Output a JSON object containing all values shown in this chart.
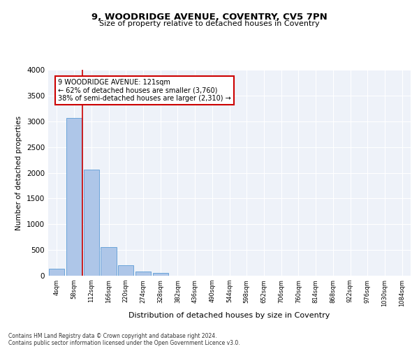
{
  "title1": "9, WOODRIDGE AVENUE, COVENTRY, CV5 7PN",
  "title2": "Size of property relative to detached houses in Coventry",
  "xlabel": "Distribution of detached houses by size in Coventry",
  "ylabel": "Number of detached properties",
  "bar_labels": [
    "4sqm",
    "58sqm",
    "112sqm",
    "166sqm",
    "220sqm",
    "274sqm",
    "328sqm",
    "382sqm",
    "436sqm",
    "490sqm",
    "544sqm",
    "598sqm",
    "652sqm",
    "706sqm",
    "760sqm",
    "814sqm",
    "868sqm",
    "922sqm",
    "976sqm",
    "1030sqm",
    "1084sqm"
  ],
  "bar_values": [
    130,
    3060,
    2060,
    560,
    210,
    80,
    55,
    0,
    0,
    0,
    0,
    0,
    0,
    0,
    0,
    0,
    0,
    0,
    0,
    0,
    0
  ],
  "bar_color": "#aec6e8",
  "bar_edge_color": "#5b9bd5",
  "annotation_text1": "9 WOODRIDGE AVENUE: 121sqm",
  "annotation_text2": "← 62% of detached houses are smaller (3,760)",
  "annotation_text3": "38% of semi-detached houses are larger (2,310) →",
  "ylim": [
    0,
    4000
  ],
  "yticks": [
    0,
    500,
    1000,
    1500,
    2000,
    2500,
    3000,
    3500,
    4000
  ],
  "background_color": "#eef2f9",
  "grid_color": "#ffffff",
  "footer1": "Contains HM Land Registry data © Crown copyright and database right 2024.",
  "footer2": "Contains public sector information licensed under the Open Government Licence v3.0."
}
